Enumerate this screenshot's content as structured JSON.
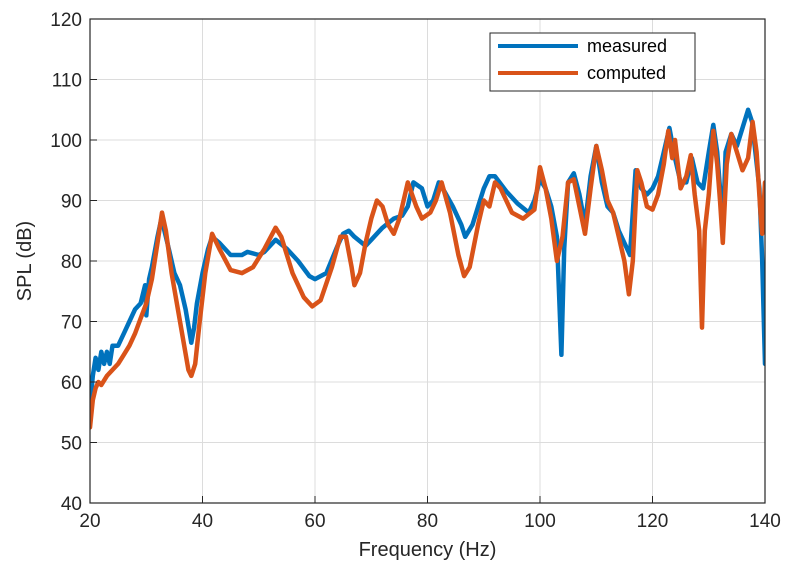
{
  "chart_data": {
    "type": "line",
    "xlabel": "Frequency (Hz)",
    "ylabel": "SPL (dB)",
    "xlim": [
      20,
      140
    ],
    "ylim": [
      40,
      120
    ],
    "xticks": [
      "20",
      "40",
      "60",
      "80",
      "100",
      "120",
      "140"
    ],
    "yticks": [
      "40",
      "50",
      "60",
      "70",
      "80",
      "90",
      "100",
      "110",
      "120"
    ],
    "grid": true,
    "legend_position": "top-right",
    "series": [
      {
        "name": "measured",
        "color": "#0072BD",
        "points": [
          [
            20,
            56
          ],
          [
            20.5,
            61
          ],
          [
            21,
            64
          ],
          [
            21.5,
            62
          ],
          [
            22,
            65
          ],
          [
            22.5,
            63
          ],
          [
            23,
            65
          ],
          [
            23.5,
            63
          ],
          [
            24,
            66
          ],
          [
            25,
            66
          ],
          [
            26,
            68
          ],
          [
            27,
            70
          ],
          [
            28,
            72
          ],
          [
            29,
            73
          ],
          [
            29.8,
            76
          ],
          [
            30,
            71
          ],
          [
            30.5,
            77
          ],
          [
            31,
            79
          ],
          [
            32,
            84
          ],
          [
            32.7,
            87
          ],
          [
            33.5,
            84
          ],
          [
            34,
            82
          ],
          [
            35,
            78
          ],
          [
            36,
            76
          ],
          [
            37,
            72
          ],
          [
            38,
            66.5
          ],
          [
            38.5,
            69
          ],
          [
            39,
            73
          ],
          [
            40,
            78
          ],
          [
            41,
            82
          ],
          [
            41.7,
            84
          ],
          [
            43,
            83
          ],
          [
            45,
            81
          ],
          [
            47,
            81
          ],
          [
            48,
            81.5
          ],
          [
            50,
            81
          ],
          [
            51,
            81.5
          ],
          [
            52,
            82.5
          ],
          [
            53,
            83.5
          ],
          [
            55,
            82
          ],
          [
            57,
            80
          ],
          [
            59,
            77.5
          ],
          [
            60,
            77
          ],
          [
            62,
            78
          ],
          [
            64,
            82.5
          ],
          [
            65,
            84.5
          ],
          [
            66,
            85
          ],
          [
            67,
            84
          ],
          [
            69,
            82.5
          ],
          [
            70,
            83.5
          ],
          [
            72,
            85.5
          ],
          [
            74,
            87
          ],
          [
            75.5,
            87.5
          ],
          [
            76.5,
            89
          ],
          [
            77.5,
            93
          ],
          [
            79,
            92
          ],
          [
            80,
            89
          ],
          [
            81,
            90
          ],
          [
            82,
            93
          ],
          [
            83,
            91.5
          ],
          [
            84.5,
            89
          ],
          [
            86,
            86
          ],
          [
            86.7,
            84
          ],
          [
            88,
            86
          ],
          [
            89,
            89
          ],
          [
            90,
            92
          ],
          [
            91,
            94
          ],
          [
            92,
            94
          ],
          [
            94,
            91.5
          ],
          [
            96,
            89.5
          ],
          [
            98,
            88
          ],
          [
            99,
            90
          ],
          [
            100,
            93.5
          ],
          [
            101,
            92
          ],
          [
            102,
            89
          ],
          [
            103,
            84
          ],
          [
            103.8,
            64.5
          ],
          [
            104.3,
            82
          ],
          [
            105,
            93
          ],
          [
            106,
            94.5
          ],
          [
            107,
            91
          ],
          [
            108,
            86
          ],
          [
            109,
            94
          ],
          [
            110,
            99
          ],
          [
            111,
            93
          ],
          [
            112,
            89
          ],
          [
            113,
            88
          ],
          [
            114,
            85
          ],
          [
            115,
            83
          ],
          [
            116,
            81
          ],
          [
            117,
            95
          ],
          [
            118,
            92
          ],
          [
            119,
            91
          ],
          [
            120,
            92
          ],
          [
            121,
            94
          ],
          [
            122,
            98
          ],
          [
            123,
            102
          ],
          [
            124,
            97
          ],
          [
            125,
            93
          ],
          [
            126,
            93
          ],
          [
            127,
            97
          ],
          [
            128,
            93
          ],
          [
            129,
            92
          ],
          [
            130,
            98
          ],
          [
            130.8,
            102.5
          ],
          [
            131.5,
            98
          ],
          [
            132,
            92
          ],
          [
            132.5,
            85
          ],
          [
            133,
            98
          ],
          [
            134,
            101
          ],
          [
            135,
            99
          ],
          [
            136,
            102
          ],
          [
            137,
            105
          ],
          [
            137.7,
            103
          ],
          [
            138.3,
            98
          ],
          [
            139,
            92
          ],
          [
            139.5,
            80
          ],
          [
            140,
            63
          ]
        ]
      },
      {
        "name": "computed",
        "color": "#D95319",
        "points": [
          [
            20,
            52.5
          ],
          [
            20.5,
            57
          ],
          [
            21,
            59
          ],
          [
            21.5,
            60
          ],
          [
            22,
            59.5
          ],
          [
            23,
            61
          ],
          [
            24,
            62
          ],
          [
            25,
            63
          ],
          [
            26,
            64.5
          ],
          [
            27,
            66
          ],
          [
            28,
            68
          ],
          [
            29,
            70.5
          ],
          [
            30,
            73
          ],
          [
            31,
            77
          ],
          [
            32,
            83
          ],
          [
            32.8,
            88
          ],
          [
            33.5,
            85
          ],
          [
            34.5,
            78
          ],
          [
            36,
            70
          ],
          [
            37.5,
            62
          ],
          [
            38,
            61
          ],
          [
            38.7,
            63
          ],
          [
            39.5,
            70
          ],
          [
            40.5,
            78
          ],
          [
            41.7,
            84.5
          ],
          [
            43,
            82
          ],
          [
            45,
            78.5
          ],
          [
            47,
            78
          ],
          [
            49,
            79
          ],
          [
            51,
            82
          ],
          [
            53,
            85.5
          ],
          [
            54,
            84
          ],
          [
            56,
            78
          ],
          [
            58,
            74
          ],
          [
            59.5,
            72.5
          ],
          [
            61,
            73.5
          ],
          [
            63,
            79
          ],
          [
            64.5,
            84
          ],
          [
            65.5,
            84
          ],
          [
            66.5,
            79
          ],
          [
            67,
            76
          ],
          [
            68,
            78
          ],
          [
            69,
            83
          ],
          [
            70,
            87
          ],
          [
            71,
            90
          ],
          [
            72,
            89
          ],
          [
            73,
            86
          ],
          [
            74,
            84.5
          ],
          [
            75,
            87
          ],
          [
            76.5,
            93
          ],
          [
            78,
            89
          ],
          [
            79,
            87
          ],
          [
            80.5,
            88
          ],
          [
            81.5,
            90
          ],
          [
            82.5,
            93
          ],
          [
            84,
            88
          ],
          [
            85.5,
            81
          ],
          [
            86.5,
            77.5
          ],
          [
            87.5,
            79
          ],
          [
            89,
            86
          ],
          [
            90,
            90
          ],
          [
            91,
            89
          ],
          [
            92,
            93
          ],
          [
            93,
            92
          ],
          [
            95,
            88
          ],
          [
            97,
            87
          ],
          [
            99,
            88.5
          ],
          [
            100,
            95.5
          ],
          [
            101,
            92
          ],
          [
            102,
            87
          ],
          [
            103,
            80
          ],
          [
            104,
            84
          ],
          [
            105,
            93
          ],
          [
            106,
            93.5
          ],
          [
            107,
            89
          ],
          [
            108,
            84.5
          ],
          [
            109,
            92
          ],
          [
            110,
            99
          ],
          [
            111,
            95
          ],
          [
            112,
            90
          ],
          [
            113,
            88
          ],
          [
            114,
            84
          ],
          [
            115,
            80
          ],
          [
            115.8,
            74.5
          ],
          [
            116.5,
            80
          ],
          [
            117.3,
            95
          ],
          [
            118,
            93
          ],
          [
            119,
            89
          ],
          [
            120,
            88.5
          ],
          [
            121,
            91
          ],
          [
            122,
            96
          ],
          [
            122.8,
            101.5
          ],
          [
            123.5,
            97
          ],
          [
            124,
            100
          ],
          [
            124.5,
            96
          ],
          [
            125,
            92
          ],
          [
            126,
            94
          ],
          [
            126.8,
            97.5
          ],
          [
            127.5,
            91
          ],
          [
            128.3,
            85
          ],
          [
            128.8,
            69
          ],
          [
            129.3,
            85
          ],
          [
            130,
            91
          ],
          [
            130.8,
            101.5
          ],
          [
            131.5,
            96
          ],
          [
            132,
            90
          ],
          [
            132.5,
            83
          ],
          [
            133.2,
            96
          ],
          [
            134,
            101
          ],
          [
            135,
            98
          ],
          [
            136,
            95
          ],
          [
            137,
            97
          ],
          [
            137.8,
            103
          ],
          [
            138.5,
            98
          ],
          [
            139.2,
            88
          ],
          [
            139.5,
            84.5
          ],
          [
            140,
            93
          ]
        ]
      }
    ]
  }
}
